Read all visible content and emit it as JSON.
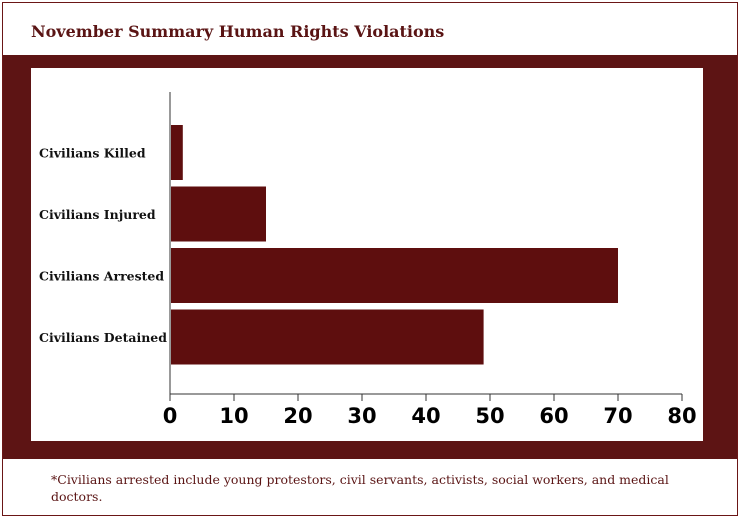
{
  "title": "November Summary Human Rights Violations",
  "footnote": "*Civilians arrested include young protestors, civil servants, activists, social workers, and medical doctors.",
  "colors": {
    "bar": "#5e0e0e",
    "band": "#5d1414",
    "title": "#5a1414"
  },
  "chart_data": {
    "type": "bar",
    "orientation": "horizontal",
    "categories": [
      "Civilians Killed",
      "Civilians Injured",
      "Civilians Arrested",
      "Civilians Detained"
    ],
    "values": [
      2,
      15,
      70,
      49
    ],
    "xlim": [
      0,
      80
    ],
    "xticks": [
      0,
      10,
      20,
      30,
      40,
      50,
      60,
      70,
      80
    ],
    "grid": false,
    "legend": "none"
  }
}
